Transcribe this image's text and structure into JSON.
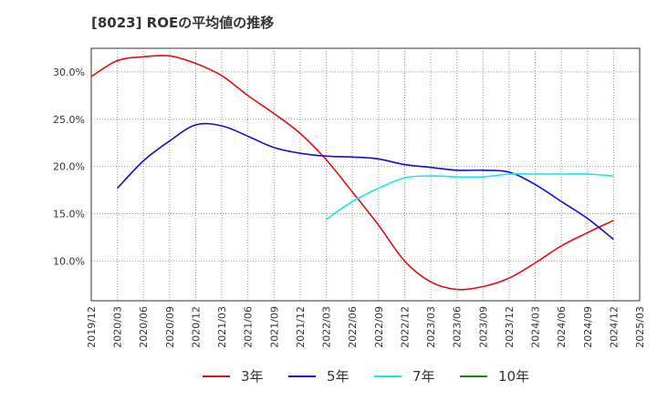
{
  "title": "[8023]  ROEの平均値の推移",
  "chart_data": {
    "type": "line",
    "title": "[8023]  ROEの平均値の推移",
    "xlabel": "",
    "ylabel": "",
    "ylim": [
      5.8,
      32.5
    ],
    "yticks": [
      10,
      15,
      20,
      25,
      30
    ],
    "ytick_labels": [
      "10.0%",
      "15.0%",
      "20.0%",
      "25.0%",
      "30.0%"
    ],
    "x_tick_labels": [
      "2019/12",
      "2020/03",
      "2020/06",
      "2020/09",
      "2020/12",
      "2021/03",
      "2021/06",
      "2021/09",
      "2021/12",
      "2022/03",
      "2022/06",
      "2022/09",
      "2022/12",
      "2023/03",
      "2023/06",
      "2023/09",
      "2023/12",
      "2024/03",
      "2024/06",
      "2024/09",
      "2024/12",
      "2025/03"
    ],
    "grid": true,
    "series": [
      {
        "name": "3年",
        "color": "#dd1111",
        "values": [
          29.5,
          31.2,
          31.6,
          31.7,
          30.9,
          29.6,
          27.5,
          25.6,
          23.5,
          20.7,
          17.3,
          13.8,
          10.0,
          7.8,
          7.0,
          7.3,
          8.2,
          9.8,
          11.6,
          13.0,
          14.3,
          null
        ]
      },
      {
        "name": "5年",
        "color": "#1111cc",
        "values": [
          null,
          17.7,
          20.6,
          22.7,
          24.4,
          24.3,
          23.2,
          22.0,
          21.4,
          21.1,
          21.0,
          20.8,
          20.2,
          19.9,
          19.6,
          19.6,
          19.4,
          18.1,
          16.3,
          14.5,
          12.3,
          null
        ]
      },
      {
        "name": "7年",
        "color": "#11e8f0",
        "values": [
          null,
          null,
          null,
          null,
          null,
          null,
          null,
          null,
          null,
          14.4,
          16.3,
          17.7,
          18.8,
          19.0,
          18.9,
          18.9,
          19.2,
          19.2,
          19.2,
          19.2,
          19.0,
          null
        ]
      },
      {
        "name": "10年",
        "color": "#118811",
        "values": [
          null,
          null,
          null,
          null,
          null,
          null,
          null,
          null,
          null,
          null,
          null,
          null,
          null,
          null,
          null,
          null,
          null,
          null,
          null,
          null,
          null,
          null
        ]
      }
    ]
  }
}
